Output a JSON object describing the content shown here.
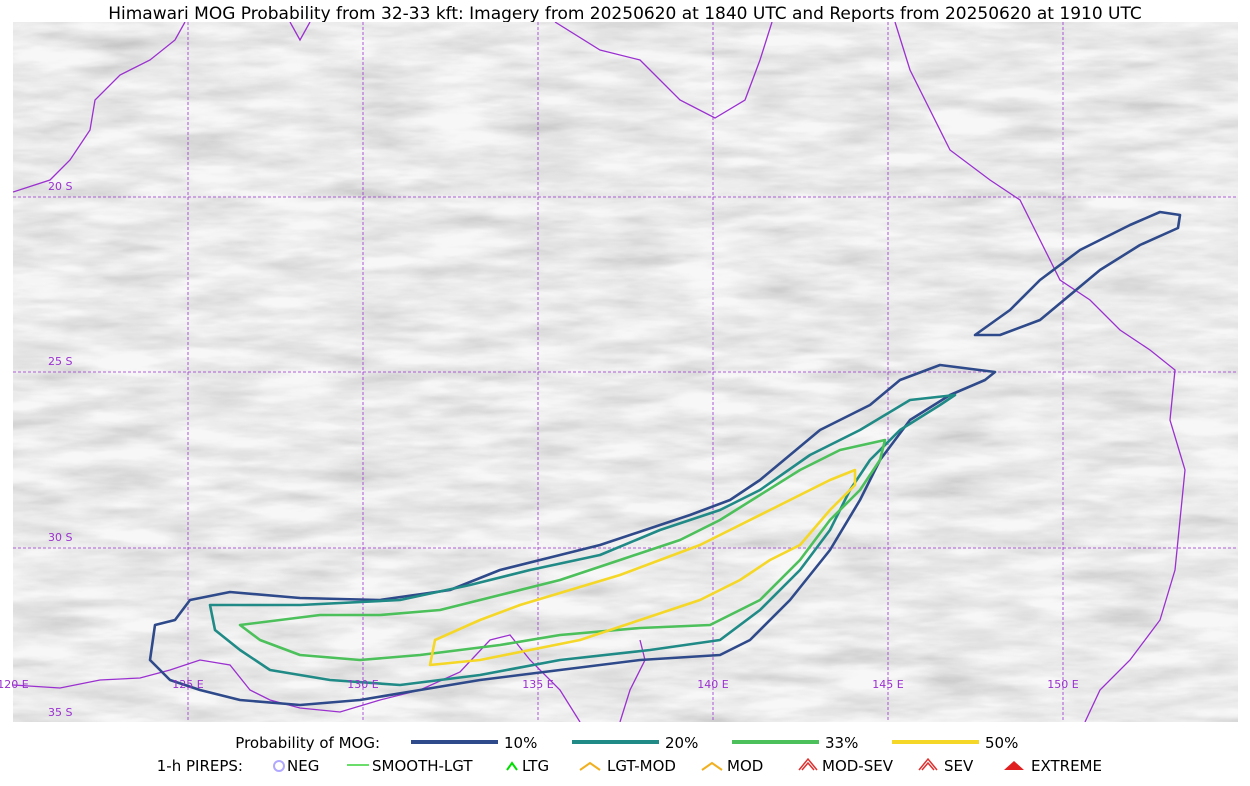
{
  "header": {
    "title": "Himawari MOG Probability from 32-33 kft: Imagery from 20250620 at 1840 UTC and Reports from 20250620 at 1910 UTC"
  },
  "map": {
    "lat_labels": [
      "20 S",
      "25 S",
      "30 S",
      "35 S"
    ],
    "lon_labels": [
      "120 E",
      "125 E",
      "130 E",
      "135 E",
      "140 E",
      "145 E",
      "150 E"
    ]
  },
  "legend": {
    "probability": {
      "title": "Probability of MOG:",
      "items": [
        "10%",
        "20%",
        "33%",
        "50%"
      ]
    },
    "pireps": {
      "title": "1-h PIREPS:",
      "items": [
        "NEG",
        "SMOOTH-LGT",
        "LTG",
        "LGT-MOD",
        "MOD",
        "MOD-SEV",
        "SEV",
        "EXTREME"
      ]
    }
  }
}
